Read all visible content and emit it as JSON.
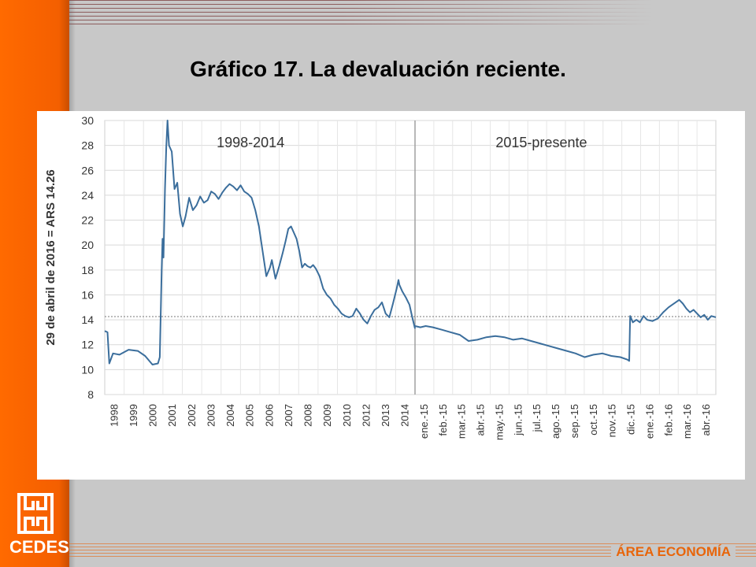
{
  "slide": {
    "title": "Gráfico 17. La devaluación reciente.",
    "logo_text": "CEDES",
    "area_label": "ÁREA ECONOMÍA"
  },
  "colors": {
    "accent_orange": "#f26100",
    "series_line": "#3b6e9c",
    "reference_line": "#777777",
    "divider_line": "#a0a0a0"
  },
  "icons": {
    "logo": "cedes-logo-icon"
  },
  "chart_data": {
    "type": "line",
    "title": "",
    "ylabel": "29 de abril de 2016 = ARS 14.26",
    "ylim": [
      8,
      30
    ],
    "yticks": [
      8,
      10,
      12,
      14,
      16,
      18,
      20,
      22,
      24,
      26,
      28,
      30
    ],
    "grid": true,
    "reference_line": {
      "value": 14.26,
      "style": "dotted"
    },
    "panels": [
      {
        "label": "1998-2014",
        "x_unit": "year",
        "xlim": [
          1998.0,
          2014.9
        ],
        "tick_labels": [
          "1998",
          "1999",
          "2000",
          "2001",
          "2002",
          "2003",
          "2004",
          "2005",
          "2006",
          "2007",
          "2008",
          "2009",
          "2010",
          "2012",
          "2013",
          "2014"
        ],
        "series": [
          {
            "x": [
              1998.0,
              1998.15,
              1998.25,
              1998.45,
              1998.8,
              1999.3,
              1999.8,
              2000.2,
              2000.6,
              2000.9,
              2001.0,
              2001.05,
              2001.1,
              2001.15,
              2001.2,
              2001.28,
              2001.35,
              2001.42,
              2001.5,
              2001.65,
              2001.8,
              2001.95,
              2002.1,
              2002.25,
              2002.4,
              2002.6,
              2002.8,
              2003.0,
              2003.2,
              2003.4,
              2003.6,
              2003.8,
              2004.0,
              2004.2,
              2004.4,
              2004.6,
              2004.8,
              2005.0,
              2005.2,
              2005.4,
              2005.6,
              2005.8,
              2006.0,
              2006.2,
              2006.4,
              2006.6,
              2006.8,
              2007.0,
              2007.1,
              2007.3,
              2007.5,
              2007.7,
              2007.85,
              2008.0,
              2008.15,
              2008.3,
              2008.45,
              2008.6,
              2008.75,
              2008.9,
              2009.05,
              2009.2,
              2009.35,
              2009.5,
              2009.7,
              2009.9,
              2010.1,
              2010.3,
              2010.5,
              2010.7,
              2010.9,
              2011.1,
              2011.3,
              2011.5,
              2011.7,
              2011.9,
              2012.1,
              2012.3,
              2012.5,
              2012.7,
              2012.9,
              2013.1,
              2013.3,
              2013.5,
              2013.7,
              2013.9,
              2014.0,
              2014.05,
              2014.2,
              2014.4,
              2014.6,
              2014.75,
              2014.9
            ],
            "values": [
              13.1,
              13.0,
              10.5,
              11.3,
              11.2,
              11.6,
              11.5,
              11.1,
              10.4,
              10.5,
              11.0,
              14.5,
              18.0,
              20.5,
              19.0,
              24.5,
              27.8,
              30.0,
              28.0,
              27.5,
              24.5,
              25.0,
              22.5,
              21.5,
              22.3,
              23.8,
              22.8,
              23.2,
              23.9,
              23.4,
              23.6,
              24.3,
              24.1,
              23.7,
              24.2,
              24.6,
              24.9,
              24.7,
              24.4,
              24.8,
              24.3,
              24.1,
              23.8,
              22.8,
              21.5,
              19.5,
              17.5,
              18.2,
              18.8,
              17.3,
              18.3,
              19.4,
              20.3,
              21.3,
              21.5,
              21.0,
              20.5,
              19.5,
              18.2,
              18.5,
              18.3,
              18.2,
              18.4,
              18.1,
              17.5,
              16.5,
              16.0,
              15.7,
              15.2,
              14.9,
              14.5,
              14.3,
              14.2,
              14.3,
              14.9,
              14.5,
              14.0,
              13.7,
              14.3,
              14.8,
              15.0,
              15.4,
              14.5,
              14.2,
              15.3,
              16.5,
              17.2,
              16.8,
              16.3,
              15.8,
              15.2,
              14.2,
              13.3
            ]
          }
        ]
      },
      {
        "label": "2015-presente",
        "x_unit": "month",
        "xlim": [
          0.0,
          16.85
        ],
        "tick_labels": [
          "ene.-15",
          "feb.-15",
          "mar.-15",
          "abr.-15",
          "may.-15",
          "jun.-15",
          "jul.-15",
          "ago.-15",
          "sep.-15",
          "oct.-15",
          "nov.-15",
          "dic.-15",
          "ene.-16",
          "feb.-16",
          "mar.-16",
          "abr.-16"
        ],
        "series": [
          {
            "x": [
              0.0,
              0.3,
              0.6,
              1.0,
              1.5,
              2.0,
              2.5,
              3.0,
              3.5,
              4.0,
              4.5,
              5.0,
              5.5,
              6.0,
              6.5,
              7.0,
              7.5,
              8.0,
              8.5,
              9.0,
              9.5,
              10.0,
              10.5,
              11.0,
              11.5,
              11.9,
              12.0,
              12.05,
              12.2,
              12.4,
              12.6,
              12.8,
              13.0,
              13.3,
              13.6,
              13.9,
              14.2,
              14.4,
              14.6,
              14.8,
              15.0,
              15.2,
              15.4,
              15.6,
              15.8,
              16.0,
              16.2,
              16.4,
              16.6,
              16.85
            ],
            "values": [
              13.5,
              13.4,
              13.5,
              13.4,
              13.2,
              13.0,
              12.8,
              12.3,
              12.4,
              12.6,
              12.7,
              12.6,
              12.4,
              12.5,
              12.3,
              12.1,
              11.9,
              11.7,
              11.5,
              11.3,
              11.0,
              11.2,
              11.3,
              11.1,
              11.0,
              10.8,
              10.7,
              14.3,
              13.8,
              14.0,
              13.8,
              14.3,
              14.0,
              13.9,
              14.1,
              14.6,
              15.0,
              15.2,
              15.4,
              15.6,
              15.3,
              14.9,
              14.6,
              14.8,
              14.5,
              14.2,
              14.4,
              14.0,
              14.3,
              14.2
            ]
          }
        ]
      }
    ]
  }
}
